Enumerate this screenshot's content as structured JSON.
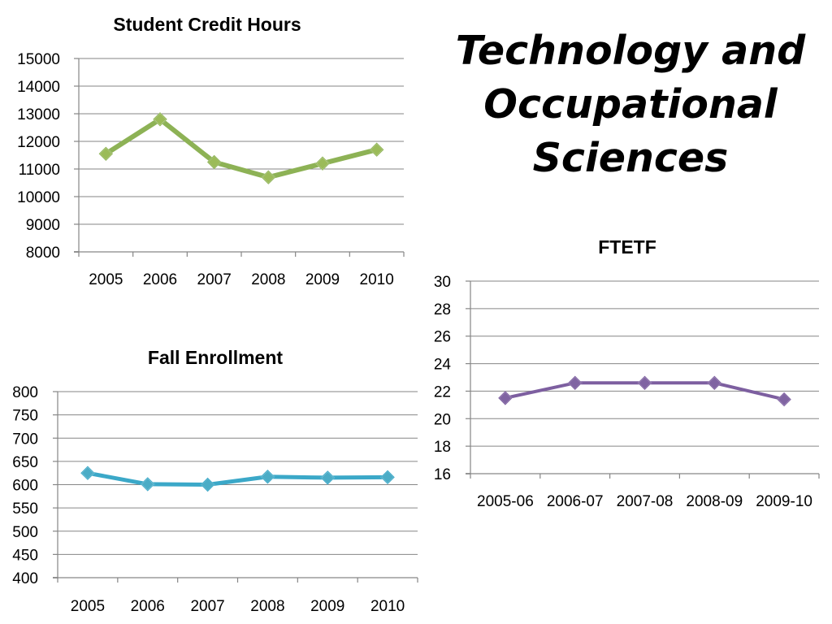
{
  "slide": {
    "title_lines": [
      "Technology and",
      "Occupational",
      "Sciences"
    ]
  },
  "chart_data": [
    {
      "id": "sch",
      "type": "line",
      "title": "Student Credit Hours",
      "categories": [
        "2005",
        "2006",
        "2007",
        "2008",
        "2009",
        "2010"
      ],
      "series": [
        {
          "values": [
            11550,
            12800,
            11250,
            10700,
            11200,
            11700
          ],
          "color": "#8db255",
          "marker_color": "#9bbb59"
        }
      ],
      "ylim": [
        8000,
        15000
      ],
      "yticks": [
        8000,
        9000,
        10000,
        11000,
        12000,
        13000,
        14000,
        15000
      ],
      "grid": true,
      "legend": "none"
    },
    {
      "id": "fall",
      "type": "line",
      "title": "Fall Enrollment",
      "categories": [
        "2005",
        "2006",
        "2007",
        "2008",
        "2009",
        "2010"
      ],
      "series": [
        {
          "values": [
            625,
            601,
            600,
            617,
            615,
            616
          ],
          "color": "#3ba8c8",
          "marker_color": "#4bacc6"
        }
      ],
      "ylim": [
        400,
        800
      ],
      "yticks": [
        400,
        450,
        500,
        550,
        600,
        650,
        700,
        750,
        800
      ],
      "grid": true,
      "legend": "none"
    },
    {
      "id": "ftetf",
      "type": "line",
      "title": "FTETF",
      "categories": [
        "2005-06",
        "2006-07",
        "2007-08",
        "2008-09",
        "2009-10"
      ],
      "series": [
        {
          "values": [
            21.5,
            22.6,
            22.6,
            22.6,
            21.4
          ],
          "color": "#7d5fa0",
          "marker_color": "#8064a2"
        }
      ],
      "ylim": [
        16,
        30
      ],
      "yticks": [
        16,
        18,
        20,
        22,
        24,
        26,
        28,
        30
      ],
      "grid": true,
      "legend": "none"
    }
  ]
}
